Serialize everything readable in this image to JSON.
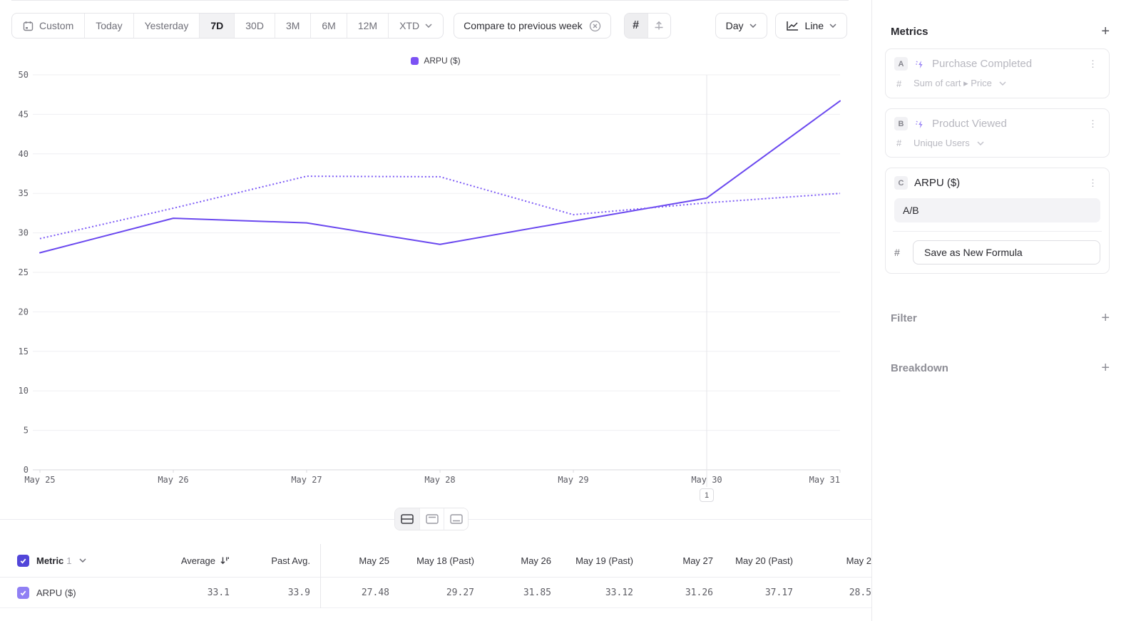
{
  "toolbar": {
    "ranges": [
      "Custom",
      "Today",
      "Yesterday",
      "7D",
      "30D",
      "3M",
      "6M",
      "12M",
      "XTD"
    ],
    "active_range": "7D",
    "compare_chip": "Compare to previous week",
    "granularity": "Day",
    "chart_type": "Line"
  },
  "legend": {
    "label": "ARPU ($)",
    "color": "#7c52f4"
  },
  "chart_data": {
    "type": "line",
    "title": "ARPU ($) over time, current vs previous week",
    "x": [
      "May 25",
      "May 26",
      "May 27",
      "May 28",
      "May 29",
      "May 30",
      "May 31"
    ],
    "series": [
      {
        "name": "ARPU ($)",
        "style": "solid",
        "color": "#6a48ef",
        "values": [
          27.48,
          31.85,
          31.26,
          28.54,
          31.5,
          34.4,
          46.7
        ]
      },
      {
        "name": "ARPU ($) previous week",
        "style": "dotted",
        "color": "#7e5cf6",
        "values": [
          29.27,
          33.12,
          37.17,
          37.1,
          32.3,
          33.8,
          35.0
        ]
      }
    ],
    "ylim": [
      0,
      50
    ],
    "yticks": [
      0,
      5,
      10,
      15,
      20,
      25,
      30,
      35,
      40,
      45,
      50
    ],
    "grid": "horizontal",
    "legend_position": "top-center",
    "annotation": {
      "label": "1",
      "x": "May 30"
    }
  },
  "table": {
    "header": {
      "metric_label": "Metric",
      "metric_index": "1",
      "columns": [
        "Average",
        "Past Avg.",
        "May 25",
        "May 18 (Past)",
        "May 26",
        "May 19 (Past)",
        "May 27",
        "May 20 (Past)",
        "May 2"
      ]
    },
    "rows": [
      {
        "label": "ARPU ($)",
        "values": [
          "33.1",
          "33.9",
          "27.48",
          "29.27",
          "31.85",
          "33.12",
          "31.26",
          "37.17",
          "28.5"
        ]
      }
    ]
  },
  "sidebar": {
    "metrics": {
      "title": "Metrics",
      "cards": [
        {
          "badge": "A",
          "title": "Purchase Completed",
          "measure_prefix": "#",
          "measure": "Sum of cart ▸ Price"
        },
        {
          "badge": "B",
          "title": "Product Viewed",
          "measure_prefix": "#",
          "measure": "Unique Users"
        },
        {
          "badge": "C",
          "title": "ARPU ($)",
          "formula": "A/B",
          "measure_prefix": "#",
          "save_button": "Save as New Formula"
        }
      ]
    },
    "filter": {
      "title": "Filter"
    },
    "breakdown": {
      "title": "Breakdown"
    }
  }
}
